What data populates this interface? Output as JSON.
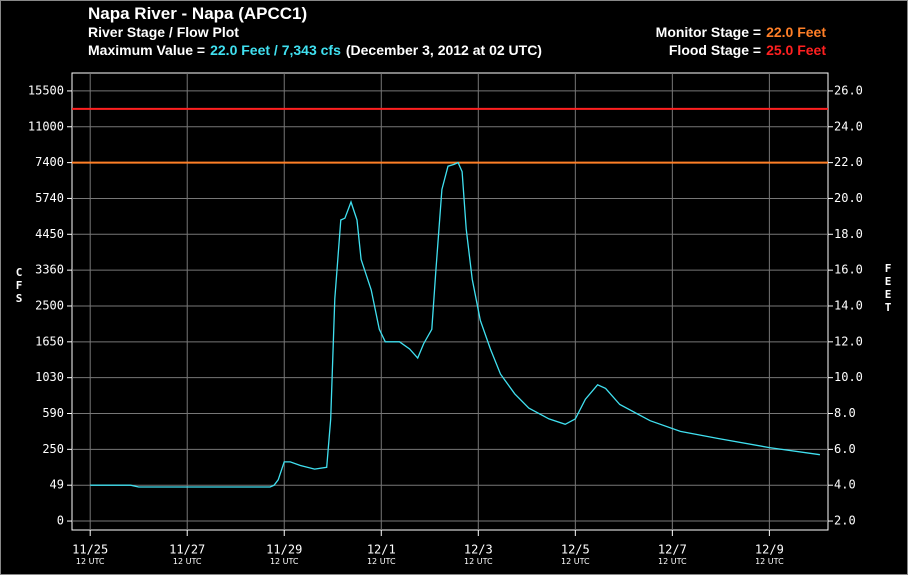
{
  "chart_data": {
    "type": "line",
    "title": "Napa River - Napa (APCC1)",
    "subtitle": "River Stage / Flow Plot",
    "max_label": "Maximum Value =",
    "max_value_label": "22.0 Feet / 7,343 cfs",
    "max_time_label": "(December 3, 2012 at 02 UTC)",
    "thresholds": [
      {
        "label": "Monitor Stage =",
        "value": 22,
        "value_label": "22.0 Feet",
        "color": "#ff7f27"
      },
      {
        "label": "Flood Stage =",
        "value": 25,
        "value_label": "25.0 Feet",
        "color": "#ff2020"
      }
    ],
    "ylabel": "CFS",
    "y2label": "FEET",
    "yticks": [
      0,
      49,
      250,
      590,
      1030,
      1650,
      2500,
      3360,
      4450,
      5740,
      7400,
      11000,
      15500
    ],
    "y2lim": [
      1.5,
      27.0
    ],
    "y2ticks": [
      {
        "value": 2,
        "label": "2.0"
      },
      {
        "value": 4,
        "label": "4.0"
      },
      {
        "value": 6,
        "label": "6.0"
      },
      {
        "value": 8,
        "label": "8.0"
      },
      {
        "value": 10,
        "label": "10.0"
      },
      {
        "value": 12,
        "label": "12.0"
      },
      {
        "value": 14,
        "label": "14.0"
      },
      {
        "value": 16,
        "label": "16.0"
      },
      {
        "value": 18,
        "label": "18.0"
      },
      {
        "value": 20,
        "label": "20.0"
      },
      {
        "value": 22,
        "label": "22.0"
      },
      {
        "value": 24,
        "label": "24.0"
      },
      {
        "value": 26,
        "label": "26.0"
      }
    ],
    "xlim": [
      "11/25 03:00",
      "12/10 17:00"
    ],
    "xticks": [
      {
        "value": "11/25 12:00",
        "label": "11/25"
      },
      {
        "value": "11/27 12:00",
        "label": "11/27"
      },
      {
        "value": "11/29 12:00",
        "label": "11/29"
      },
      {
        "value": "12/01 12:00",
        "label": "12/1"
      },
      {
        "value": "12/03 12:00",
        "label": "12/3"
      },
      {
        "value": "12/05 12:00",
        "label": "12/5"
      },
      {
        "value": "12/07 12:00",
        "label": "12/7"
      },
      {
        "value": "12/09 12:00",
        "label": "12/9"
      }
    ],
    "xtick_sublabel": "12 UTC",
    "grid": true,
    "color": "#40e0f0",
    "axis": "y2",
    "x": [
      "11/25 12:00",
      "11/26 08:00",
      "11/26 12:00",
      "11/29 05:00",
      "11/29 07:00",
      "11/29 09:00",
      "11/29 12:00",
      "11/29 15:00",
      "11/29 20:00",
      "11/30 03:00",
      "11/30 09:00",
      "11/30 11:00",
      "11/30 13:00",
      "11/30 16:00",
      "11/30 18:00",
      "11/30 21:00",
      "12/01 00:00",
      "12/01 02:00",
      "12/01 07:00",
      "12/01 11:00",
      "12/01 14:00",
      "12/01 21:00",
      "12/02 02:00",
      "12/02 06:00",
      "12/02 09:00",
      "12/02 13:00",
      "12/02 15:00",
      "12/02 18:00",
      "12/02 21:00",
      "12/03 00:00",
      "12/03 02:00",
      "12/03 04:00",
      "12/03 06:00",
      "12/03 09:00",
      "12/03 13:00",
      "12/03 18:00",
      "12/03 23:00",
      "12/04 06:00",
      "12/04 13:00",
      "12/04 23:00",
      "12/05 07:00",
      "12/05 12:00",
      "12/05 17:00",
      "12/05 23:00",
      "12/06 03:00",
      "12/06 10:00",
      "12/07 01:00",
      "12/07 16:00",
      "12/08 11:00",
      "12/09 12:00",
      "12/10 13:00"
    ],
    "values": [
      4.0,
      4.0,
      3.9,
      3.9,
      4.0,
      4.3,
      5.3,
      5.3,
      5.1,
      4.9,
      5.0,
      7.7,
      14.4,
      18.8,
      18.9,
      19.8,
      18.8,
      16.6,
      14.9,
      12.7,
      12.0,
      12.0,
      11.6,
      11.1,
      11.9,
      12.7,
      16.0,
      20.5,
      21.8,
      21.9,
      22.0,
      21.5,
      18.3,
      15.5,
      13.2,
      11.6,
      10.2,
      9.1,
      8.3,
      7.7,
      7.4,
      7.7,
      8.8,
      9.6,
      9.4,
      8.5,
      7.6,
      7.0,
      6.6,
      6.1,
      5.7
    ]
  }
}
